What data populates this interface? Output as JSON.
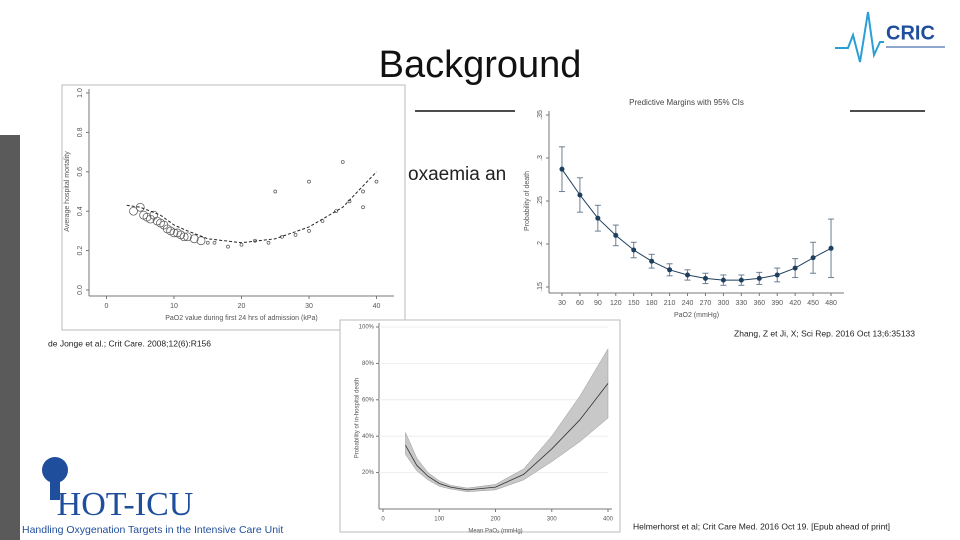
{
  "slide": {
    "title": "Background",
    "partial_text": "oxaemia an",
    "logo_top": "CRIC",
    "logo_bottom": "HOT-ICU",
    "logo_bottom_caption": "Handling Oxygenation Targets in the Intensive Care Unit",
    "citations": [
      "de Jonge et al.; Crit Care. 2008;12(6):R156",
      "Zhang, Z et Ji, X; Sci Rep. 2016 Oct 13;6:35133",
      "Helmerhorst et al; Crit Care Med. 2016 Oct 19. [Epub ahead of print]"
    ]
  },
  "chart_data": [
    {
      "type": "scatter",
      "x_label": "PaO2 value during first 24 hrs of admission (kPa)",
      "y_label": "Average hospital mortality",
      "x": [
        4,
        5,
        5.5,
        6,
        6.5,
        7,
        7.5,
        8,
        8.5,
        9,
        9.5,
        10,
        10.5,
        11,
        11.5,
        12,
        13,
        14,
        15,
        16,
        18,
        20,
        22,
        24,
        26,
        28,
        30,
        32,
        34,
        36,
        38,
        40,
        25,
        30,
        35,
        38
      ],
      "values": [
        0.4,
        0.42,
        0.38,
        0.37,
        0.36,
        0.38,
        0.35,
        0.34,
        0.33,
        0.31,
        0.3,
        0.29,
        0.29,
        0.28,
        0.27,
        0.27,
        0.26,
        0.25,
        0.24,
        0.24,
        0.22,
        0.23,
        0.25,
        0.24,
        0.27,
        0.28,
        0.3,
        0.35,
        0.4,
        0.45,
        0.5,
        0.55,
        0.5,
        0.55,
        0.65,
        0.42
      ],
      "fit_x": [
        3,
        5,
        8,
        10,
        12,
        15,
        20,
        25,
        30,
        35,
        40
      ],
      "fit_values": [
        0.43,
        0.42,
        0.38,
        0.33,
        0.3,
        0.26,
        0.24,
        0.26,
        0.32,
        0.42,
        0.6
      ],
      "color": "#555555",
      "xlim": [
        -2,
        42
      ],
      "ylim": [
        0,
        1
      ],
      "xticks": [
        0,
        10,
        20,
        30,
        40
      ],
      "yticks": [
        {
          "value": 0,
          "label": "0.0"
        },
        {
          "value": 0.2,
          "label": "0.2"
        },
        {
          "value": 0.4,
          "label": "0.4"
        },
        {
          "value": 0.6,
          "label": "0.6"
        },
        {
          "value": 0.8,
          "label": "0.8"
        },
        {
          "value": 1,
          "label": "1.0"
        }
      ]
    },
    {
      "type": "errorbar",
      "title": "Predictive Margins with 95% CIs",
      "x_label": "PaO2 (mmHg)",
      "y_label": "Probability of death",
      "x": [
        30,
        60,
        90,
        120,
        150,
        180,
        210,
        240,
        270,
        300,
        330,
        360,
        390,
        420,
        450,
        480
      ],
      "values": [
        0.287,
        0.257,
        0.23,
        0.21,
        0.193,
        0.18,
        0.17,
        0.164,
        0.16,
        0.158,
        0.158,
        0.16,
        0.164,
        0.172,
        0.184,
        0.195
      ],
      "errors": [
        0.026,
        0.02,
        0.015,
        0.012,
        0.009,
        0.008,
        0.007,
        0.006,
        0.006,
        0.006,
        0.006,
        0.007,
        0.008,
        0.011,
        0.018,
        0.034
      ],
      "color": "#1f3f5f",
      "xlim": [
        15,
        495
      ],
      "ylim": [
        0.15,
        0.35
      ],
      "xticks": [
        30,
        60,
        90,
        120,
        150,
        180,
        210,
        240,
        270,
        300,
        330,
        360,
        390,
        420,
        450,
        480
      ],
      "yticks": [
        {
          "value": 0.15,
          "label": ".15"
        },
        {
          "value": 0.2,
          "label": ".2"
        },
        {
          "value": 0.25,
          "label": ".25"
        },
        {
          "value": 0.3,
          "label": ".3"
        },
        {
          "value": 0.35,
          "label": ".35"
        }
      ]
    },
    {
      "type": "band",
      "x_label": "Mean PaO₂ (mmHg)",
      "y_label": "Probability of in-hospital death",
      "x": [
        40,
        60,
        80,
        100,
        120,
        150,
        200,
        250,
        300,
        350,
        400
      ],
      "values": [
        35,
        24,
        18,
        14,
        12,
        10.5,
        12,
        19,
        33,
        49,
        69
      ],
      "band_low": [
        30,
        21,
        16,
        12.5,
        11,
        9.5,
        10.5,
        16,
        26,
        37,
        50
      ],
      "band_high": [
        42,
        28,
        20,
        15.5,
        13,
        11.5,
        13.5,
        22,
        40,
        62,
        88
      ],
      "color": "#333333",
      "band_color": "#c8c8c8",
      "xlim": [
        0,
        400
      ],
      "ylim": [
        0,
        100
      ],
      "xticks": [
        0,
        100,
        200,
        300,
        400
      ],
      "yticks": [
        {
          "value": 20,
          "label": "20%"
        },
        {
          "value": 40,
          "label": "40%"
        },
        {
          "value": 60,
          "label": "60%"
        },
        {
          "value": 80,
          "label": "80%"
        },
        {
          "value": 100,
          "label": "100%"
        }
      ]
    }
  ]
}
